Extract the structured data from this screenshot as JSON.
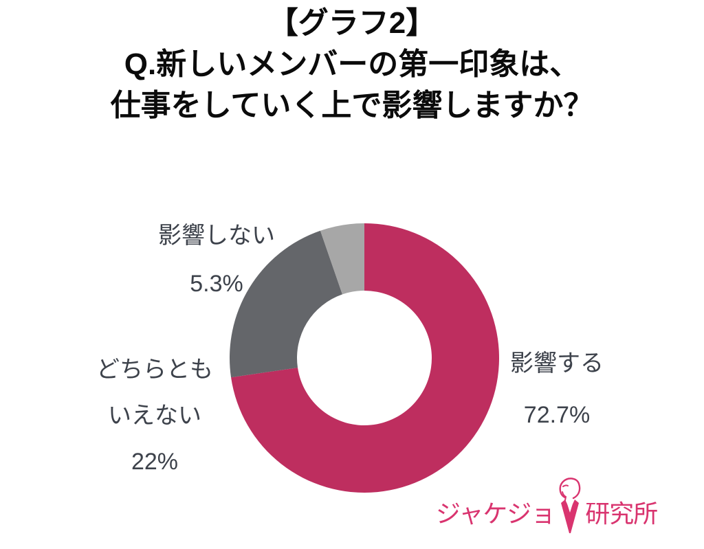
{
  "title": {
    "lines": [
      "【グラフ2】",
      "Q.新しいメンバーの第一印象は、",
      "仕事をしていく上で影響しますか？"
    ]
  },
  "chart_data": {
    "type": "pie",
    "subtype": "donut",
    "title": "Q.新しいメンバーの第一印象は、仕事をしていく上で影響しますか？",
    "categories": [
      "影響する",
      "どちらともいえない",
      "影響しない"
    ],
    "values": [
      72.7,
      22,
      5.3
    ],
    "unit": "%",
    "value_labels": [
      "72.7%",
      "22%",
      "5.3%"
    ],
    "category_label_lines": [
      [
        "影響する"
      ],
      [
        "どちらとも",
        "いえない"
      ],
      [
        "影響しない"
      ]
    ],
    "colors": [
      "#be2e5f",
      "#64666a",
      "#a7a7a7"
    ],
    "start_angle_deg": 0,
    "direction": "clockwise",
    "inner_radius_ratio": 0.5,
    "legend": "none",
    "labels_position": "outside",
    "label_text_color": "#3d424b",
    "background": "#ffffff"
  },
  "logo": {
    "text_left": "ジャケジョ",
    "text_right": "研究所",
    "color": "#d9346f",
    "icon": "woman-in-jacket-icon"
  },
  "colors": {
    "background": "#ffffff",
    "title_text": "#0b0b0b",
    "label_text": "#3d424b"
  }
}
